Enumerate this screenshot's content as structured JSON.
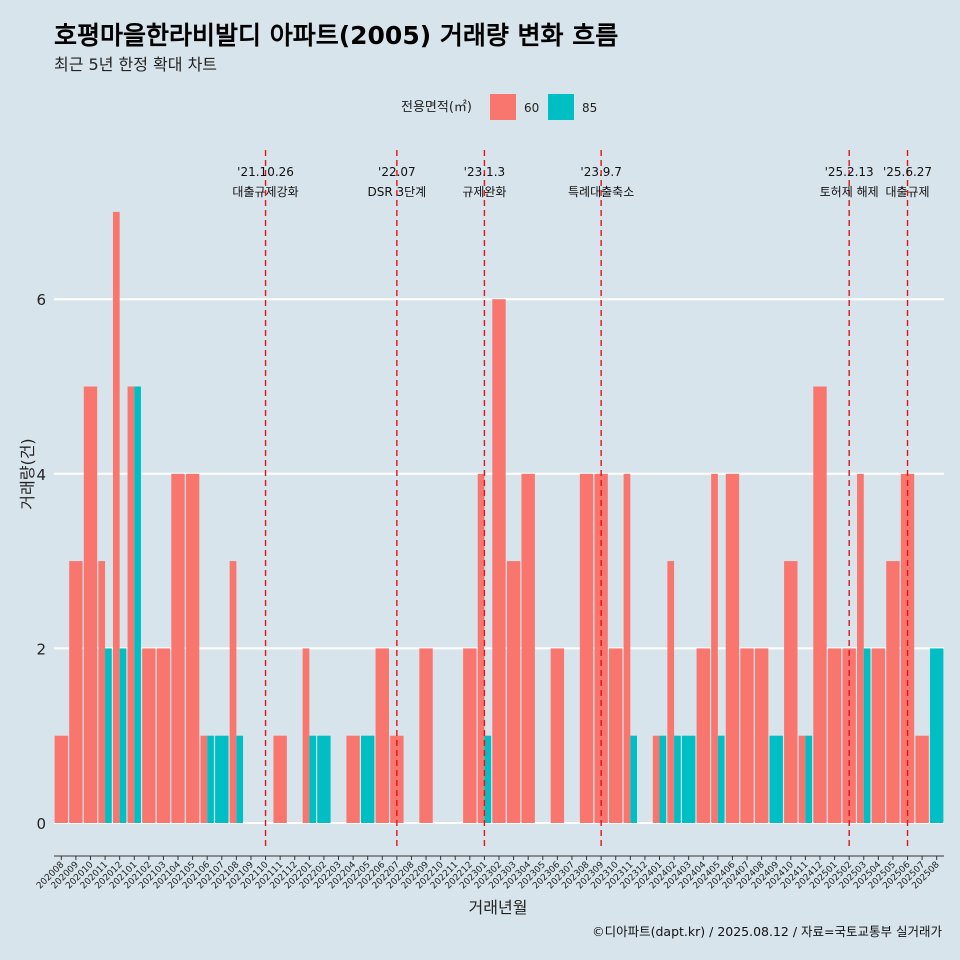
{
  "title": "호평마을한라비발디 아파트(2005) 거래량 변화 흐름",
  "subtitle": "최근 5년 한정 확대 차트",
  "caption": "©디아파트(dapt.kr) / 2025.08.12 / 자료=국토교통부 실거래가",
  "chart_data": {
    "type": "bar",
    "xlabel": "거래년월",
    "ylabel": "거래량(건)",
    "ylim": [
      0,
      7
    ],
    "yticks": [
      0,
      2,
      4,
      6
    ],
    "grid": true,
    "legend": {
      "title": "전용면적(㎡)",
      "position": "top",
      "entries": [
        {
          "label": "60",
          "color": "#f8766d"
        },
        {
          "label": "85",
          "color": "#00bfc4"
        }
      ]
    },
    "categories": [
      "202008",
      "202009",
      "202010",
      "202011",
      "202012",
      "202101",
      "202102",
      "202103",
      "202104",
      "202105",
      "202106",
      "202107",
      "202108",
      "202109",
      "202110",
      "202111",
      "202112",
      "202201",
      "202202",
      "202203",
      "202204",
      "202205",
      "202206",
      "202207",
      "202208",
      "202209",
      "202210",
      "202211",
      "202212",
      "202301",
      "202302",
      "202303",
      "202304",
      "202305",
      "202306",
      "202307",
      "202308",
      "202309",
      "202310",
      "202311",
      "202312",
      "202401",
      "202402",
      "202403",
      "202404",
      "202405",
      "202406",
      "202407",
      "202408",
      "202409",
      "202410",
      "202411",
      "202412",
      "202501",
      "202502",
      "202503",
      "202504",
      "202505",
      "202506",
      "202507",
      "202508"
    ],
    "series": [
      {
        "name": "60",
        "values": [
          1,
          3,
          5,
          3,
          7,
          5,
          2,
          2,
          4,
          4,
          1,
          0,
          3,
          0,
          0,
          1,
          0,
          2,
          0,
          0,
          1,
          0,
          2,
          1,
          0,
          2,
          0,
          0,
          2,
          4,
          6,
          3,
          4,
          0,
          2,
          0,
          4,
          4,
          2,
          4,
          0,
          1,
          3,
          0,
          2,
          4,
          4,
          2,
          2,
          0,
          3,
          1,
          5,
          2,
          2,
          4,
          2,
          3,
          4,
          1,
          0
        ]
      },
      {
        "name": "85",
        "values": [
          0,
          0,
          0,
          2,
          2,
          5,
          0,
          0,
          0,
          0,
          1,
          1,
          1,
          0,
          0,
          0,
          0,
          1,
          1,
          0,
          0,
          1,
          0,
          0,
          0,
          0,
          0,
          0,
          0,
          1,
          0,
          0,
          0,
          0,
          0,
          0,
          0,
          0,
          0,
          1,
          0,
          1,
          1,
          1,
          0,
          1,
          0,
          0,
          0,
          1,
          0,
          1,
          0,
          0,
          0,
          2,
          0,
          0,
          0,
          0,
          2
        ]
      }
    ],
    "events": [
      {
        "date": "'21.10.26",
        "label": "대출규제강화",
        "month": "202110"
      },
      {
        "date": "'22.07",
        "label": "DSR 3단계",
        "month": "202207"
      },
      {
        "date": "'23.1.3",
        "label": "규제완화",
        "month": "202301"
      },
      {
        "date": "'23.9.7",
        "label": "특례대출축소",
        "month": "202309"
      },
      {
        "date": "'25.2.13",
        "label": "토허제 해제",
        "month": "202502"
      },
      {
        "date": "'25.6.27",
        "label": "대출규제",
        "month": "202506"
      }
    ]
  }
}
